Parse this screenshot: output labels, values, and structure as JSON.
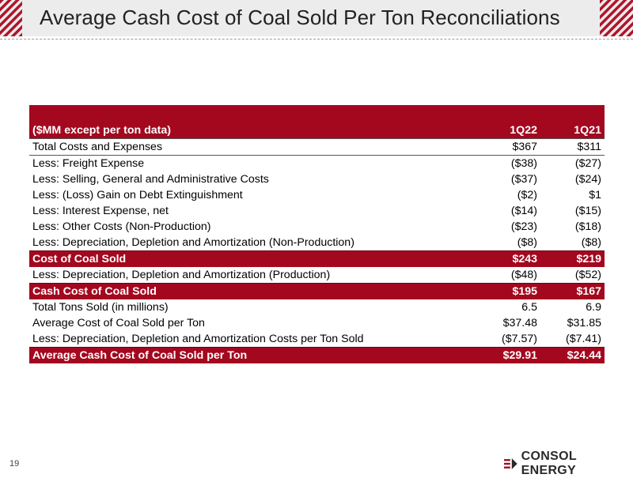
{
  "slide": {
    "title": "Average Cash Cost of Coal Sold Per Ton Reconciliations",
    "page_number": "19",
    "logo_text": "CONSOL ENERGY",
    "brand_color": "#a3081f"
  },
  "table": {
    "header": {
      "label": "($MM except per ton data)",
      "col1": "1Q22",
      "col2": "1Q21"
    },
    "rows": [
      {
        "label": "Total Costs and Expenses",
        "v1": "$367",
        "v2": "$311"
      },
      {
        "label": "Less: Freight Expense",
        "v1": "($38)",
        "v2": "($27)"
      },
      {
        "label": "Less: Selling, General and Administrative Costs",
        "v1": "($37)",
        "v2": "($24)"
      },
      {
        "label": "Less: (Loss) Gain on Debt Extinguishment",
        "v1": "($2)",
        "v2": "$1"
      },
      {
        "label": "Less: Interest Expense, net",
        "v1": "($14)",
        "v2": "($15)"
      },
      {
        "label": "Less: Other Costs (Non-Production)",
        "v1": "($23)",
        "v2": "($18)"
      },
      {
        "label": "Less: Depreciation, Depletion and Amortization (Non-Production)",
        "v1": "($8)",
        "v2": "($8)"
      },
      {
        "label": "Cost of Coal Sold",
        "v1": "$243",
        "v2": "$219"
      },
      {
        "label": "Less: Depreciation, Depletion and Amortization (Production)",
        "v1": "($48)",
        "v2": "($52)"
      },
      {
        "label": "Cash Cost of Coal Sold",
        "v1": "$195",
        "v2": "$167"
      },
      {
        "label": "Total Tons Sold (in millions)",
        "v1": "6.5",
        "v2": "6.9"
      },
      {
        "label": "Average Cost of Coal Sold per Ton",
        "v1": "$37.48",
        "v2": "$31.85"
      },
      {
        "label": "Less: Depreciation, Depletion and Amortization Costs per Ton Sold",
        "v1": "($7.57)",
        "v2": "($7.41)"
      },
      {
        "label": "Average Cash Cost of Coal Sold per Ton",
        "v1": "$29.91",
        "v2": "$24.44"
      }
    ]
  }
}
